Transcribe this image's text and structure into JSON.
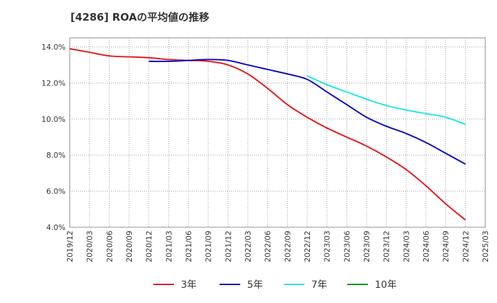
{
  "chart_data": {
    "type": "line",
    "title": "[4286]  ROAの平均値の推移",
    "xlabel": "",
    "ylabel": "",
    "ylim": [
      4.0,
      14.5
    ],
    "yticks": [
      "4.0%",
      "6.0%",
      "8.0%",
      "10.0%",
      "12.0%",
      "14.0%"
    ],
    "categories": [
      "2019/12",
      "2020/03",
      "2020/06",
      "2020/09",
      "2020/12",
      "2021/03",
      "2021/06",
      "2021/09",
      "2021/12",
      "2022/03",
      "2022/06",
      "2022/09",
      "2022/12",
      "2023/03",
      "2023/06",
      "2023/09",
      "2023/12",
      "2024/03",
      "2024/06",
      "2024/09",
      "2024/12",
      "2025/03"
    ],
    "grid": true,
    "legend_position": "bottom",
    "series": [
      {
        "name": "3年",
        "color": "#e31a1c",
        "values": [
          13.9,
          13.7,
          13.5,
          13.45,
          13.4,
          13.3,
          13.25,
          13.2,
          13.0,
          12.5,
          11.7,
          10.8,
          10.1,
          9.5,
          9.0,
          8.5,
          7.9,
          7.2,
          6.3,
          5.3,
          4.4,
          null
        ]
      },
      {
        "name": "5年",
        "color": "#0a0ac8",
        "values": [
          null,
          null,
          null,
          null,
          13.2,
          13.2,
          13.25,
          13.3,
          13.25,
          13.0,
          12.75,
          12.5,
          12.2,
          11.5,
          10.8,
          10.1,
          9.6,
          9.2,
          8.7,
          8.1,
          7.5,
          null
        ]
      },
      {
        "name": "7年",
        "color": "#22e6e6",
        "values": [
          null,
          null,
          null,
          null,
          null,
          null,
          null,
          null,
          null,
          null,
          null,
          null,
          12.4,
          11.9,
          11.5,
          11.1,
          10.75,
          10.5,
          10.3,
          10.1,
          9.7,
          null
        ]
      },
      {
        "name": "10年",
        "color": "#228b22",
        "values": [
          null,
          null,
          null,
          null,
          null,
          null,
          null,
          null,
          null,
          null,
          null,
          null,
          null,
          null,
          null,
          null,
          null,
          null,
          null,
          null,
          null,
          null
        ]
      }
    ]
  }
}
